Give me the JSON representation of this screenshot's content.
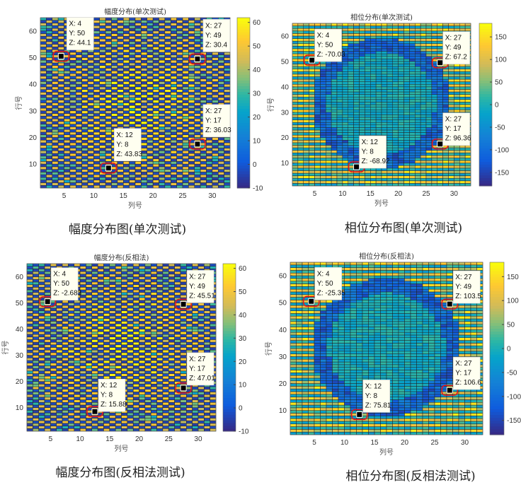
{
  "chart_data": [
    {
      "type": "heatmap",
      "title": "幅度分布(单次测试)",
      "caption": "幅度分布图(单次测试)",
      "xlabel": "列号",
      "ylabel": "行号",
      "xlim": [
        1,
        33
      ],
      "ylim": [
        1,
        65
      ],
      "xticks": [
        5,
        10,
        15,
        20,
        25,
        30
      ],
      "yticks": [
        10,
        20,
        30,
        40,
        50,
        60
      ],
      "clim": [
        -10,
        62
      ],
      "cticks": [
        -10,
        0,
        10,
        20,
        30,
        40,
        50,
        60
      ],
      "pattern": "amplitude",
      "datatips": [
        {
          "x": 4,
          "y": 50,
          "z": "44.1"
        },
        {
          "x": 27,
          "y": 49,
          "z": "30.4"
        },
        {
          "x": 27,
          "y": 17,
          "z": "36.03"
        },
        {
          "x": 12,
          "y": 8,
          "z": "43.83"
        }
      ]
    },
    {
      "type": "heatmap",
      "title": "相位分布(单次测试)",
      "caption": "相位分布图(单次测试)",
      "xlabel": "列号",
      "ylabel": "行号",
      "xlim": [
        1,
        33
      ],
      "ylim": [
        1,
        65
      ],
      "xticks": [
        5,
        10,
        15,
        20,
        25,
        30
      ],
      "yticks": [
        10,
        20,
        30,
        40,
        50,
        60
      ],
      "clim": [
        -180,
        180
      ],
      "cticks": [
        -150,
        -100,
        -50,
        0,
        50,
        100,
        150
      ],
      "pattern": "phase",
      "datatips": [
        {
          "x": 4,
          "y": 50,
          "z": "-70.03"
        },
        {
          "x": 27,
          "y": 49,
          "z": "67.2"
        },
        {
          "x": 27,
          "y": 17,
          "z": "96.36"
        },
        {
          "x": 12,
          "y": 8,
          "z": "-68.92"
        }
      ]
    },
    {
      "type": "heatmap",
      "title": "幅度分布(反相法)",
      "caption": "幅度分布图(反相法测试)",
      "xlabel": "列号",
      "ylabel": "行号",
      "xlim": [
        1,
        33
      ],
      "ylim": [
        1,
        65
      ],
      "xticks": [
        5,
        10,
        15,
        20,
        25,
        30
      ],
      "yticks": [
        10,
        20,
        30,
        40,
        50,
        60
      ],
      "clim": [
        -10,
        62
      ],
      "cticks": [
        -10,
        0,
        10,
        20,
        30,
        40,
        50,
        60
      ],
      "pattern": "amplitude",
      "datatips": [
        {
          "x": 4,
          "y": 50,
          "z": "-2.683"
        },
        {
          "x": 27,
          "y": 49,
          "z": "45.51"
        },
        {
          "x": 27,
          "y": 17,
          "z": "47.01"
        },
        {
          "x": 12,
          "y": 8,
          "z": "15.88"
        }
      ]
    },
    {
      "type": "heatmap",
      "title": "相位分布(反相法)",
      "caption": "相位分布图(反相法测试)",
      "xlabel": "列号",
      "ylabel": "行号",
      "xlim": [
        1,
        33
      ],
      "ylim": [
        1,
        65
      ],
      "xticks": [
        5,
        10,
        15,
        20,
        25,
        30
      ],
      "yticks": [
        10,
        20,
        30,
        40,
        50,
        60
      ],
      "clim": [
        -180,
        180
      ],
      "cticks": [
        -150,
        -100,
        -50,
        0,
        50,
        100,
        150
      ],
      "pattern": "phase",
      "datatips": [
        {
          "x": 4,
          "y": 50,
          "z": "-25.35"
        },
        {
          "x": 27,
          "y": 49,
          "z": "103.5"
        },
        {
          "x": 27,
          "y": 17,
          "z": "106.6"
        },
        {
          "x": 12,
          "y": 8,
          "z": "75.81"
        }
      ]
    }
  ],
  "colors": {
    "highlight": "#e8141b",
    "marker": "#000000",
    "tip_bg": "#fffff0"
  }
}
